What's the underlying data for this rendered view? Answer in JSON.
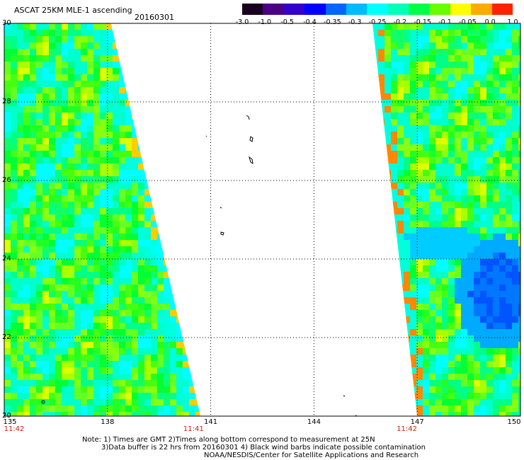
{
  "header": {
    "title": "ASCAT 25KM MLE-1 ascending",
    "date": "20160301"
  },
  "colorbar": {
    "ticks": [
      "-3.0",
      "-1.0",
      "-0.5",
      "-0.4",
      "-0.35",
      "-0.3",
      "-0.25",
      "-0.2",
      "-0.15",
      "-0.1",
      "-0.05",
      "0.0",
      "1.0"
    ],
    "colors": [
      "#1a0020",
      "#4a0088",
      "#3300cc",
      "#0000ff",
      "#0066ff",
      "#00bbff",
      "#00ffff",
      "#00ffbb",
      "#00ff44",
      "#66ff00",
      "#ffff00",
      "#ffaa00",
      "#ff2200"
    ]
  },
  "axes": {
    "lat_labels": [
      "30",
      "28",
      "26",
      "24",
      "22",
      "20"
    ],
    "lon_labels": [
      "135",
      "138",
      "141",
      "144",
      "147",
      "150"
    ],
    "lat_values": [
      30,
      28,
      26,
      24,
      22,
      20
    ],
    "lon_values": [
      135,
      138,
      141,
      144,
      147,
      150
    ],
    "lat_range": [
      20,
      30
    ],
    "lon_range": [
      135,
      150
    ]
  },
  "times": [
    {
      "label": "11:42",
      "lon": 135
    },
    {
      "label": "11:41",
      "lon": 140.5
    },
    {
      "label": "11:42",
      "lon": 146.7
    }
  ],
  "notes": {
    "line1": "Note: 1) Times are GMT 2)Times along bottom correspond to measurement at 25N",
    "line2": "3)Data buffer is 22 hrs from 20160301 4) Black wind barbs indicate possible contamination",
    "line3": "NOAA/NESDIS/Center for Satellite Applications and Research"
  },
  "swaths": {
    "left": {
      "west_lon": 135,
      "east_lon_top": 138.1,
      "east_lon_bottom": 140.7
    },
    "right": {
      "west_lon_top": 145.7,
      "west_lon_bottom": 147.0,
      "east_lon": 150
    }
  }
}
